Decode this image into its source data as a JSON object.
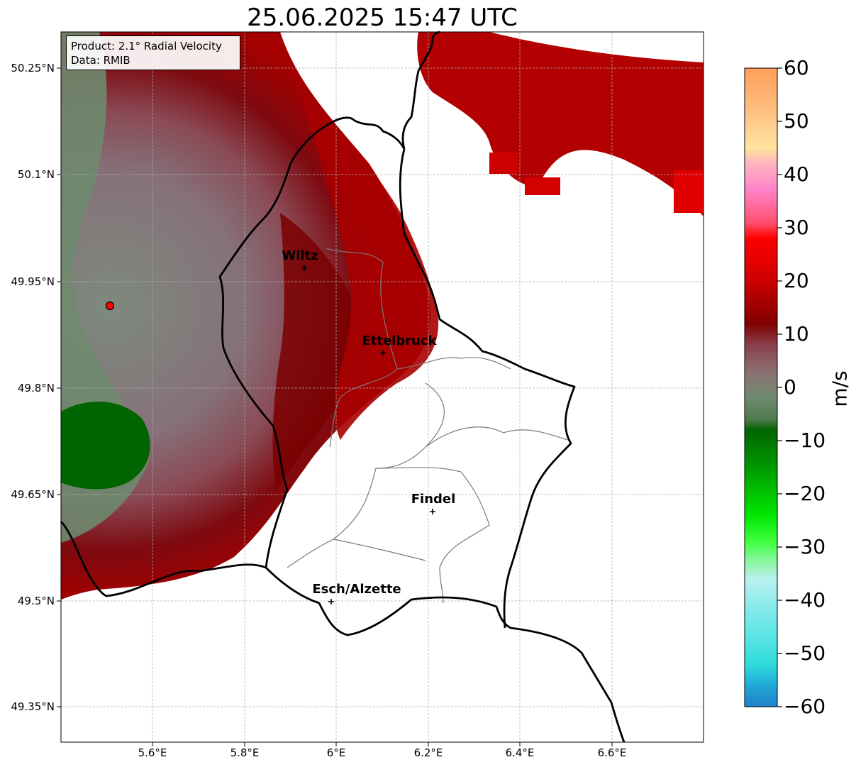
{
  "title": "25.06.2025 15:47 UTC",
  "info": {
    "product": "Product: 2.1° Radial Velocity",
    "source": "Data: RMIB"
  },
  "axes": {
    "lat_labels": [
      "50.25°N",
      "50.1°N",
      "49.95°N",
      "49.8°N",
      "49.65°N",
      "49.5°N",
      "49.35°N"
    ],
    "lon_labels": [
      "5.6°E",
      "5.8°E",
      "6°E",
      "6.2°E",
      "6.4°E",
      "6.6°E"
    ]
  },
  "cities": [
    {
      "name": "Wiltz",
      "lon": 5.93,
      "lat": 49.965
    },
    {
      "name": "Ettelbruck",
      "lon": 6.1,
      "lat": 49.847
    },
    {
      "name": "Findel",
      "lon": 6.21,
      "lat": 49.627
    },
    {
      "name": "Esch/Alzette",
      "lon": 5.99,
      "lat": 49.499
    }
  ],
  "radar_site": {
    "lon": 5.505,
    "lat": 49.915,
    "color": "#ff0000"
  },
  "colorbar": {
    "unit": "m/s",
    "ticks": [
      "60",
      "50",
      "40",
      "30",
      "20",
      "10",
      "0",
      "−10",
      "−20",
      "−30",
      "−40",
      "−50",
      "−60"
    ],
    "tick_values": [
      60,
      50,
      40,
      30,
      20,
      10,
      0,
      -10,
      -20,
      -30,
      -40,
      -50,
      -60
    ],
    "range": [
      -60,
      60
    ],
    "stops": [
      {
        "v": 60,
        "c": "#ff9e5a"
      },
      {
        "v": 52,
        "c": "#ffc081"
      },
      {
        "v": 45,
        "c": "#ffe39e"
      },
      {
        "v": 42,
        "c": "#ffb3c0"
      },
      {
        "v": 37,
        "c": "#ff82c8"
      },
      {
        "v": 31,
        "c": "#ff5070"
      },
      {
        "v": 28,
        "c": "#ff0000"
      },
      {
        "v": 20,
        "c": "#cc0000"
      },
      {
        "v": 12,
        "c": "#800000"
      },
      {
        "v": 8,
        "c": "#8b3f4c"
      },
      {
        "v": 3,
        "c": "#8b6f72"
      },
      {
        "v": -2,
        "c": "#6f8b6f"
      },
      {
        "v": -6,
        "c": "#4e7a4e"
      },
      {
        "v": -8,
        "c": "#006400"
      },
      {
        "v": -15,
        "c": "#009900"
      },
      {
        "v": -24,
        "c": "#00e600"
      },
      {
        "v": -29,
        "c": "#40ff40"
      },
      {
        "v": -33,
        "c": "#90f5a8"
      },
      {
        "v": -36,
        "c": "#b8f0f0"
      },
      {
        "v": -44,
        "c": "#70e8e8"
      },
      {
        "v": -52,
        "c": "#30dcdc"
      },
      {
        "v": -56,
        "c": "#20a8d8"
      },
      {
        "v": -60,
        "c": "#1e82c8"
      }
    ]
  },
  "map_extent": {
    "lon": [
      5.4,
      6.8
    ],
    "lat": [
      49.3,
      50.3
    ]
  }
}
